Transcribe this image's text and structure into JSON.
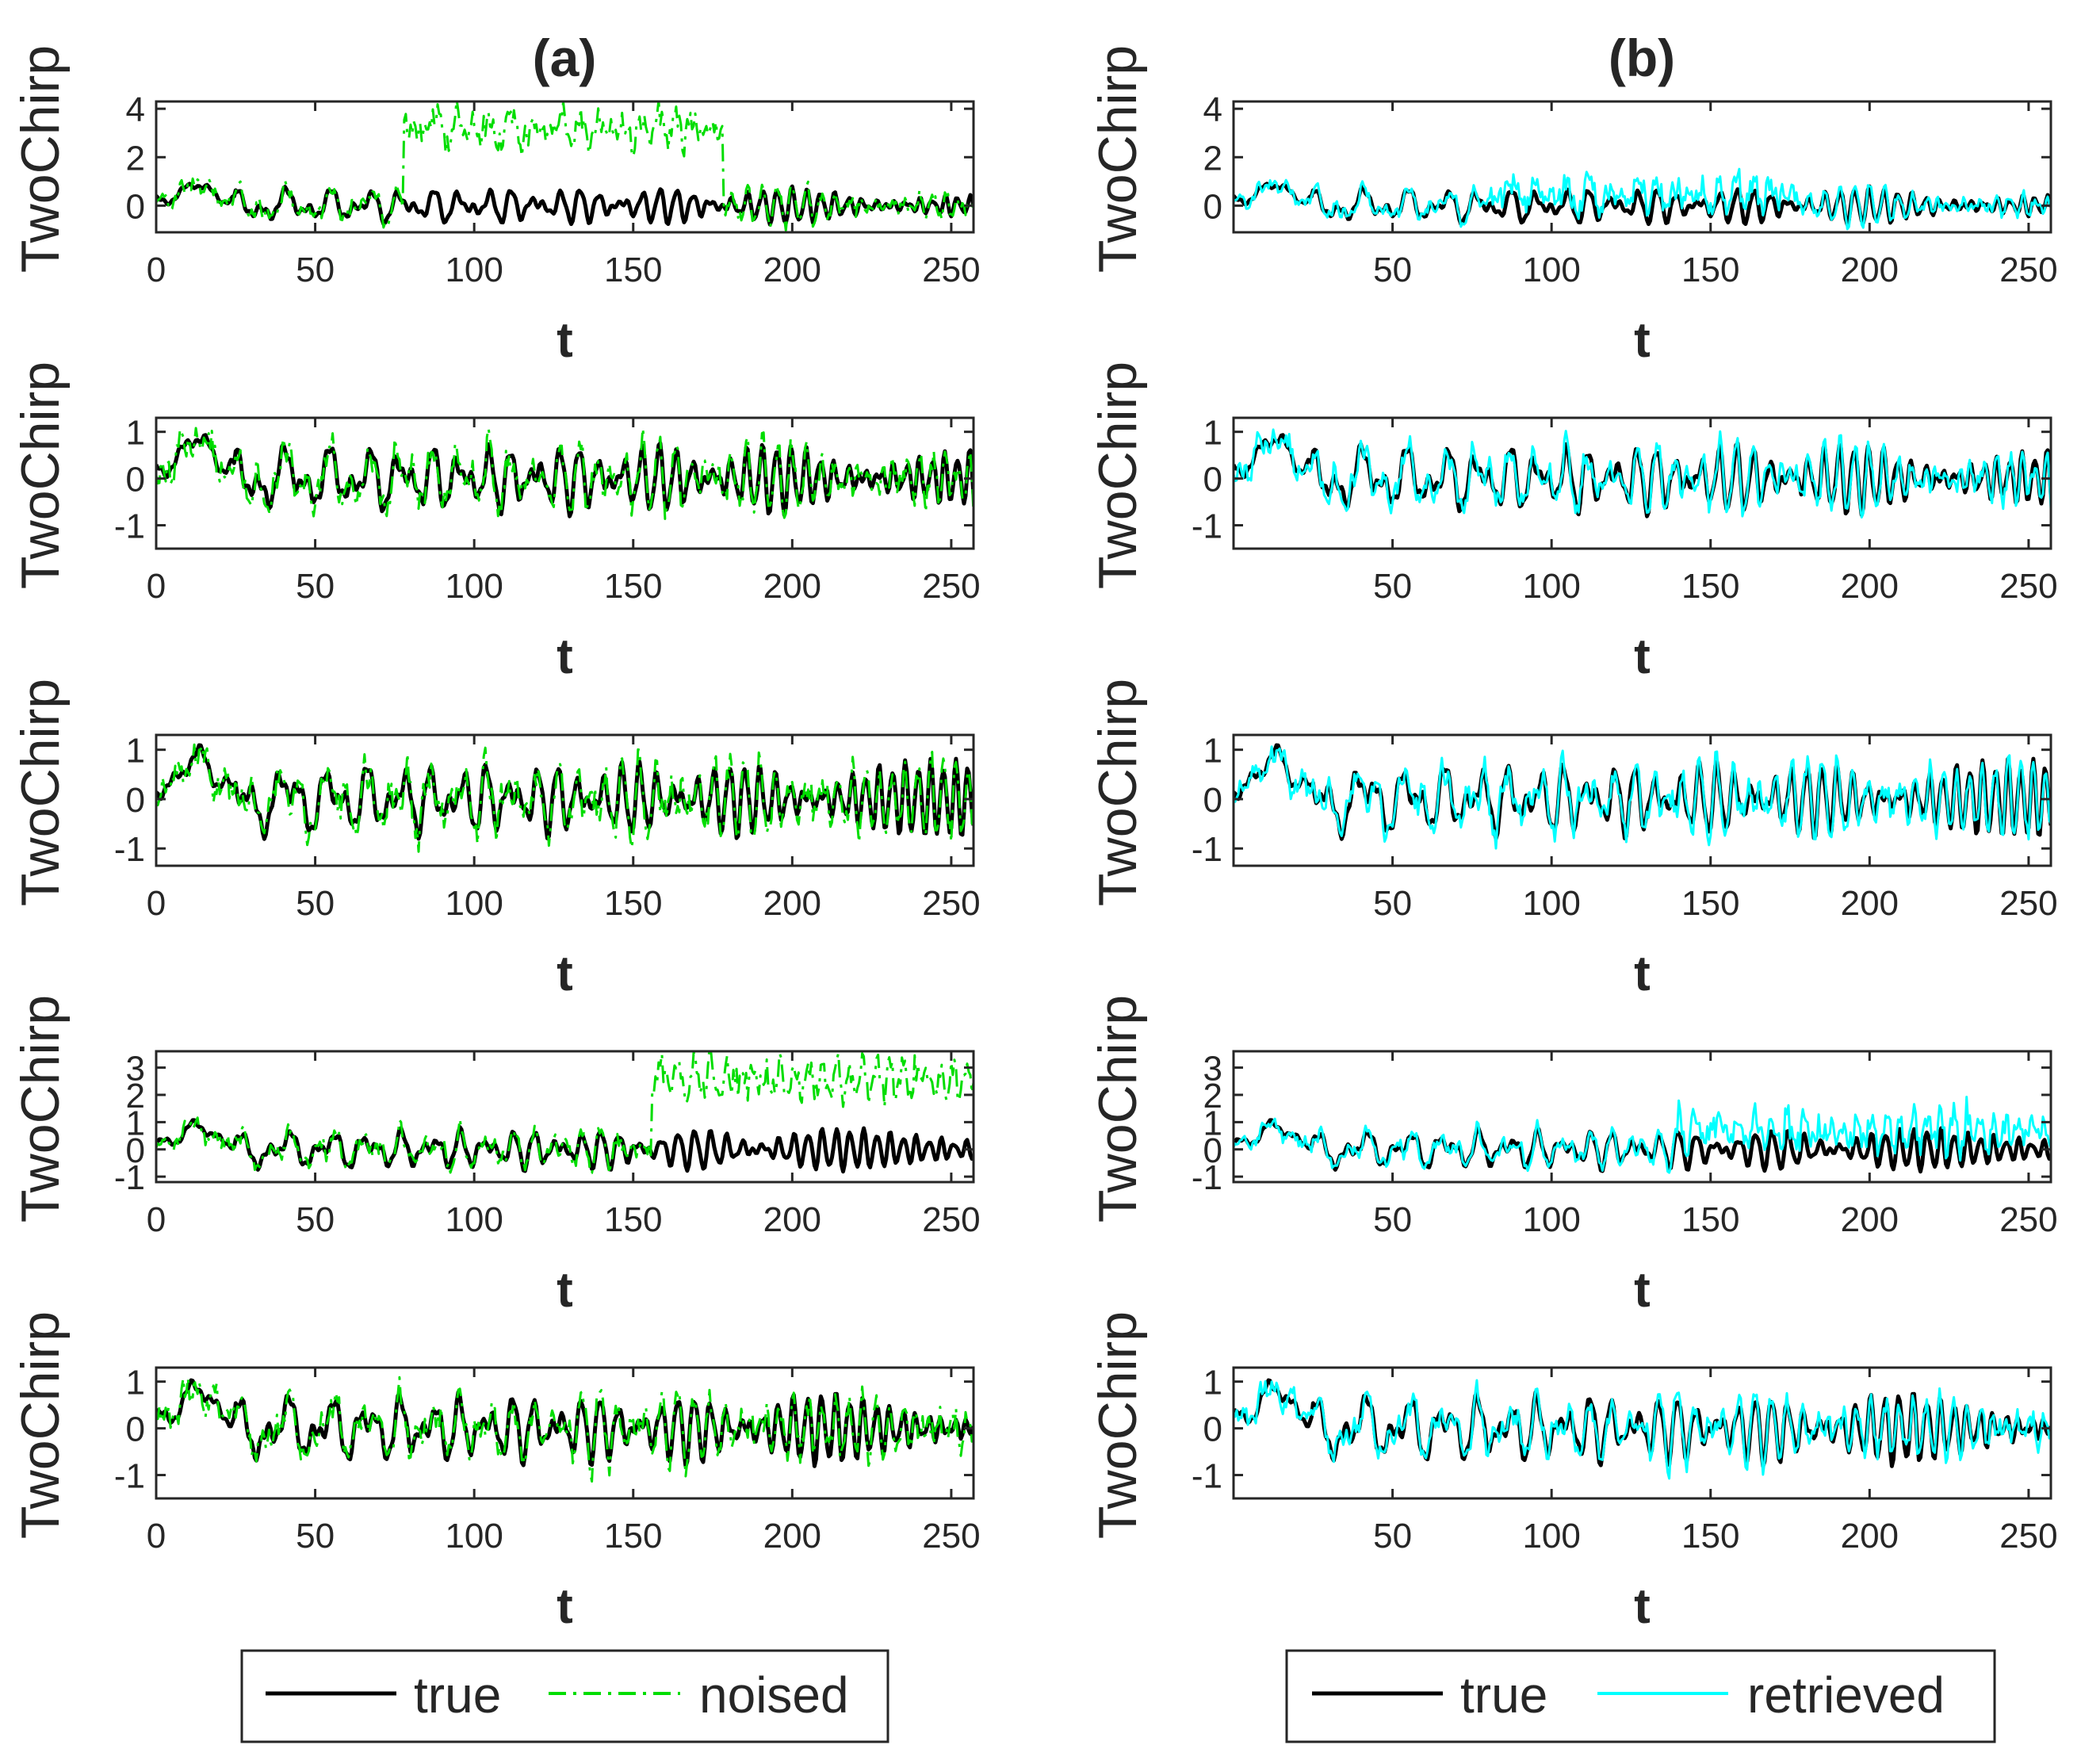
{
  "chart_data": {
    "type": "line",
    "description_free": true,
    "columns": [
      {
        "title": "(a)",
        "legend": [
          {
            "label": "true",
            "color": "#000000",
            "style": "solid"
          },
          {
            "label": "noised",
            "color": "#00dd00",
            "style": "dashdot"
          }
        ],
        "compare_name": "noised",
        "compare_color": "#00dd00",
        "xlim": [
          0,
          257
        ],
        "xticks": [
          0,
          50,
          100,
          150,
          200,
          250
        ],
        "subplots": [
          {
            "ylabel": "TwoChirp",
            "xlabel": "t",
            "ylim": [
              -1.1,
              4.3
            ],
            "yticks": [
              0,
              2,
              4
            ],
            "seed": 11,
            "offset": {
              "start": 78,
              "end": 178,
              "level": 3.2
            }
          },
          {
            "ylabel": "TwoChirp",
            "xlabel": "t",
            "ylim": [
              -1.5,
              1.3
            ],
            "yticks": [
              -1,
              0,
              1
            ],
            "seed": 23,
            "offset": null
          },
          {
            "ylabel": "TwoChirp",
            "xlabel": "t",
            "ylim": [
              -1.35,
              1.3
            ],
            "yticks": [
              -1,
              0,
              1
            ],
            "seed": 37,
            "offset": null
          },
          {
            "ylabel": "TwoChirp",
            "xlabel": "t",
            "ylim": [
              -1.2,
              3.6
            ],
            "yticks": [
              -1,
              0,
              1,
              2,
              3
            ],
            "seed": 41,
            "offset": {
              "start": 156,
              "end": 257,
              "level": 2.6
            }
          },
          {
            "ylabel": "TwoChirp",
            "xlabel": "t",
            "ylim": [
              -1.5,
              1.3
            ],
            "yticks": [
              -1,
              0,
              1
            ],
            "seed": 53,
            "offset": null
          }
        ]
      },
      {
        "title": "(b)",
        "legend": [
          {
            "label": "true",
            "color": "#000000",
            "style": "solid"
          },
          {
            "label": "retrieved",
            "color": "#00ffff",
            "style": "solid"
          }
        ],
        "compare_name": "retrieved",
        "compare_color": "#00ffff",
        "xlim": [
          0,
          257
        ],
        "xticks": [
          50,
          100,
          150,
          200,
          250
        ],
        "subplots": [
          {
            "ylabel": "TwoChirp",
            "xlabel": "t",
            "ylim": [
              -1.1,
              4.3
            ],
            "yticks": [
              0,
              2,
              4
            ],
            "seed": 11,
            "offset": {
              "start": 80,
              "end": 178,
              "level": 0.5
            }
          },
          {
            "ylabel": "TwoChirp",
            "xlabel": "t",
            "ylim": [
              -1.5,
              1.3
            ],
            "yticks": [
              -1,
              0,
              1
            ],
            "seed": 23,
            "offset": null
          },
          {
            "ylabel": "TwoChirp",
            "xlabel": "t",
            "ylim": [
              -1.35,
              1.3
            ],
            "yticks": [
              -1,
              0,
              1
            ],
            "seed": 37,
            "offset": null
          },
          {
            "ylabel": "TwoChirp",
            "xlabel": "t",
            "ylim": [
              -1.2,
              3.6
            ],
            "yticks": [
              -1,
              0,
              1,
              2,
              3
            ],
            "seed": 41,
            "offset": {
              "start": 140,
              "end": 257,
              "level": 0.7
            }
          },
          {
            "ylabel": "TwoChirp",
            "xlabel": "t",
            "ylim": [
              -1.5,
              1.3
            ],
            "yticks": [
              -1,
              0,
              1
            ],
            "seed": 53,
            "offset": null
          }
        ]
      }
    ]
  }
}
